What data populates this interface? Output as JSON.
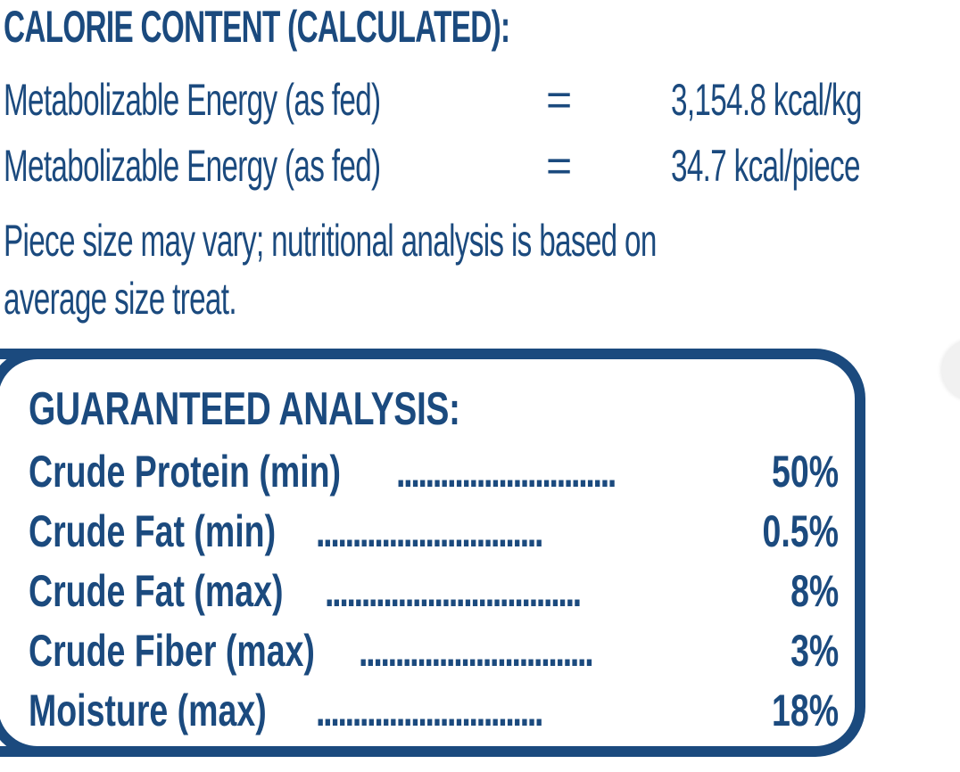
{
  "calorie": {
    "heading": "CALORIE CONTENT (CALCULATED):",
    "rows": [
      {
        "label": "Metabolizable Energy (as fed)",
        "eq": "=",
        "value": "3,154.8 kcal/kg"
      },
      {
        "label": "Metabolizable Energy (as fed)",
        "eq": "=",
        "value": "34.7 kcal/piece"
      }
    ],
    "note_line1": "Piece size may vary; nutritional analysis is based on",
    "note_line2": "average size treat."
  },
  "analysis": {
    "heading": "GUARANTEED ANALYSIS:",
    "rows": [
      {
        "name": "Crude Protein (min)",
        "dots": "..............................",
        "value": "50%"
      },
      {
        "name": "Crude Fat (min)",
        "dots": " ...............................",
        "value": "0.5%"
      },
      {
        "name": "Crude Fat (max)",
        "dots": "...................................",
        "value": "8%"
      },
      {
        "name": "Crude Fiber (max)",
        "dots": "................................",
        "value": "3%"
      },
      {
        "name": "Moisture (max)",
        "dots": " ...............................",
        "value": "18%"
      }
    ]
  },
  "colors": {
    "text": "#1b4a7e",
    "background": "#ffffff"
  }
}
